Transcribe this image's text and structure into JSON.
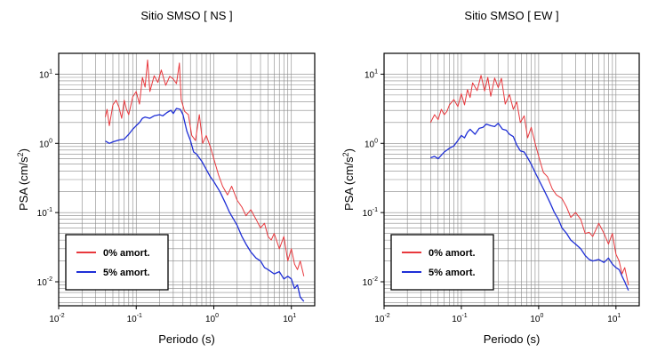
{
  "chart_data": [
    {
      "type": "line",
      "title": "Sitio SMSO [ NS ]",
      "xlabel": "Periodo (s)",
      "ylabel": "PSA (cm/s²)",
      "ylabel_base": "PSA (cm/s",
      "ylabel_exp": "2",
      "ylabel_close": ")",
      "x_scale": "log",
      "y_scale": "log",
      "xlim": [
        0.01,
        20
      ],
      "ylim": [
        0.0045,
        20
      ],
      "grid": true,
      "legend_position": "bottom-left",
      "x_ticks": [
        {
          "base": "10",
          "exp": "-2",
          "v": 0.01
        },
        {
          "base": "10",
          "exp": "-1",
          "v": 0.1
        },
        {
          "base": "10",
          "exp": "0",
          "v": 1
        },
        {
          "base": "10",
          "exp": "1",
          "v": 10
        }
      ],
      "y_ticks": [
        {
          "base": "10",
          "exp": "-2",
          "v": 0.01
        },
        {
          "base": "10",
          "exp": "-1",
          "v": 0.1
        },
        {
          "base": "10",
          "exp": "0",
          "v": 1
        },
        {
          "base": "10",
          "exp": "1",
          "v": 10
        }
      ],
      "series": [
        {
          "name": "0% amort.",
          "color": "#e8383d",
          "x": [
            0.04,
            0.042,
            0.045,
            0.05,
            0.055,
            0.06,
            0.065,
            0.07,
            0.075,
            0.08,
            0.09,
            0.1,
            0.11,
            0.12,
            0.13,
            0.14,
            0.15,
            0.17,
            0.19,
            0.21,
            0.24,
            0.27,
            0.3,
            0.33,
            0.36,
            0.38,
            0.42,
            0.47,
            0.52,
            0.58,
            0.65,
            0.72,
            0.8,
            0.9,
            1.0,
            1.15,
            1.3,
            1.5,
            1.7,
            2.0,
            2.3,
            2.6,
            3.0,
            3.5,
            4.0,
            4.5,
            5.0,
            5.5,
            6.0,
            7.0,
            8.0,
            9.0,
            10,
            11,
            12,
            13,
            14.5
          ],
          "y": [
            2.4,
            3.1,
            1.8,
            3.6,
            4.2,
            3.3,
            2.3,
            4.2,
            3.1,
            2.6,
            4.7,
            5.6,
            3.7,
            9.0,
            6.5,
            16,
            5.6,
            9.5,
            7.6,
            11.5,
            6.9,
            9.3,
            8.5,
            7.3,
            14.5,
            4.3,
            2.9,
            2.6,
            1.3,
            1.1,
            2.6,
            1.0,
            1.3,
            0.9,
            0.6,
            0.35,
            0.24,
            0.18,
            0.24,
            0.15,
            0.12,
            0.09,
            0.11,
            0.08,
            0.06,
            0.07,
            0.045,
            0.04,
            0.05,
            0.03,
            0.045,
            0.02,
            0.03,
            0.018,
            0.015,
            0.02,
            0.012
          ]
        },
        {
          "name": "5% amort.",
          "color": "#1f2fd6",
          "x": [
            0.04,
            0.045,
            0.05,
            0.06,
            0.07,
            0.08,
            0.09,
            0.1,
            0.11,
            0.12,
            0.13,
            0.15,
            0.17,
            0.2,
            0.22,
            0.25,
            0.28,
            0.3,
            0.33,
            0.37,
            0.4,
            0.45,
            0.5,
            0.55,
            0.6,
            0.7,
            0.8,
            0.9,
            1.0,
            1.2,
            1.4,
            1.6,
            1.8,
            2.0,
            2.3,
            2.6,
            3.0,
            3.5,
            4.0,
            4.5,
            5.0,
            6.0,
            7.0,
            8.0,
            9.0,
            10,
            11,
            12,
            13,
            14.5
          ],
          "y": [
            1.08,
            1.0,
            1.05,
            1.12,
            1.15,
            1.35,
            1.6,
            1.8,
            2.0,
            2.3,
            2.4,
            2.3,
            2.5,
            2.6,
            2.5,
            2.8,
            3.0,
            2.7,
            3.2,
            3.1,
            2.6,
            1.5,
            1.1,
            0.75,
            0.7,
            0.55,
            0.42,
            0.33,
            0.28,
            0.2,
            0.14,
            0.1,
            0.08,
            0.065,
            0.045,
            0.035,
            0.027,
            0.022,
            0.02,
            0.016,
            0.015,
            0.013,
            0.014,
            0.011,
            0.012,
            0.011,
            0.008,
            0.009,
            0.006,
            0.0052
          ]
        }
      ]
    },
    {
      "type": "line",
      "title": "Sitio SMSO [ EW ]",
      "xlabel": "Periodo (s)",
      "ylabel": "PSA (cm/s²)",
      "ylabel_base": "PSA (cm/s",
      "ylabel_exp": "2",
      "ylabel_close": ")",
      "x_scale": "log",
      "y_scale": "log",
      "xlim": [
        0.01,
        20
      ],
      "ylim": [
        0.0045,
        20
      ],
      "grid": true,
      "legend_position": "bottom-left",
      "x_ticks": [
        {
          "base": "10",
          "exp": "-2",
          "v": 0.01
        },
        {
          "base": "10",
          "exp": "-1",
          "v": 0.1
        },
        {
          "base": "10",
          "exp": "0",
          "v": 1
        },
        {
          "base": "10",
          "exp": "1",
          "v": 10
        }
      ],
      "y_ticks": [
        {
          "base": "10",
          "exp": "-2",
          "v": 0.01
        },
        {
          "base": "10",
          "exp": "-1",
          "v": 0.1
        },
        {
          "base": "10",
          "exp": "0",
          "v": 1
        },
        {
          "base": "10",
          "exp": "1",
          "v": 10
        }
      ],
      "series": [
        {
          "name": "0% amort.",
          "color": "#e8383d",
          "x": [
            0.04,
            0.045,
            0.05,
            0.055,
            0.06,
            0.065,
            0.07,
            0.08,
            0.09,
            0.1,
            0.11,
            0.12,
            0.13,
            0.14,
            0.16,
            0.18,
            0.2,
            0.22,
            0.24,
            0.27,
            0.3,
            0.33,
            0.37,
            0.42,
            0.47,
            0.52,
            0.58,
            0.65,
            0.72,
            0.8,
            0.9,
            1.0,
            1.15,
            1.3,
            1.5,
            1.7,
            2.0,
            2.3,
            2.6,
            3.0,
            3.5,
            4.0,
            4.5,
            5.0,
            6.0,
            7.0,
            8.0,
            9.0,
            10,
            11,
            12,
            13,
            14.5
          ],
          "y": [
            2.0,
            2.6,
            2.2,
            3.1,
            2.6,
            2.9,
            3.6,
            4.3,
            3.4,
            5.2,
            3.6,
            6.0,
            4.6,
            7.5,
            5.8,
            9.6,
            5.7,
            9.0,
            4.8,
            8.8,
            6.4,
            8.7,
            3.7,
            5.1,
            3.1,
            4.0,
            2.0,
            2.5,
            1.2,
            1.7,
            1.0,
            0.65,
            0.38,
            0.33,
            0.22,
            0.18,
            0.16,
            0.12,
            0.085,
            0.1,
            0.08,
            0.05,
            0.052,
            0.045,
            0.07,
            0.05,
            0.035,
            0.05,
            0.025,
            0.02,
            0.013,
            0.016,
            0.009
          ]
        },
        {
          "name": "5% amort.",
          "color": "#1f2fd6",
          "x": [
            0.04,
            0.045,
            0.05,
            0.06,
            0.07,
            0.08,
            0.09,
            0.1,
            0.11,
            0.12,
            0.13,
            0.15,
            0.17,
            0.19,
            0.21,
            0.24,
            0.27,
            0.3,
            0.34,
            0.38,
            0.42,
            0.47,
            0.52,
            0.58,
            0.65,
            0.72,
            0.8,
            0.9,
            1.0,
            1.2,
            1.4,
            1.6,
            1.8,
            2.0,
            2.3,
            2.6,
            3.0,
            3.5,
            4.0,
            4.5,
            5.0,
            6.0,
            7.0,
            8.0,
            9.0,
            10,
            11,
            12,
            13,
            14.5
          ],
          "y": [
            0.62,
            0.65,
            0.6,
            0.75,
            0.85,
            0.92,
            1.1,
            1.3,
            1.2,
            1.45,
            1.6,
            1.35,
            1.65,
            1.7,
            1.9,
            1.8,
            1.75,
            1.95,
            1.6,
            1.55,
            1.35,
            1.25,
            0.95,
            0.78,
            0.75,
            0.62,
            0.5,
            0.38,
            0.3,
            0.2,
            0.14,
            0.1,
            0.08,
            0.06,
            0.05,
            0.04,
            0.035,
            0.03,
            0.024,
            0.021,
            0.02,
            0.021,
            0.019,
            0.022,
            0.018,
            0.016,
            0.015,
            0.012,
            0.01,
            0.0075
          ]
        }
      ]
    }
  ]
}
